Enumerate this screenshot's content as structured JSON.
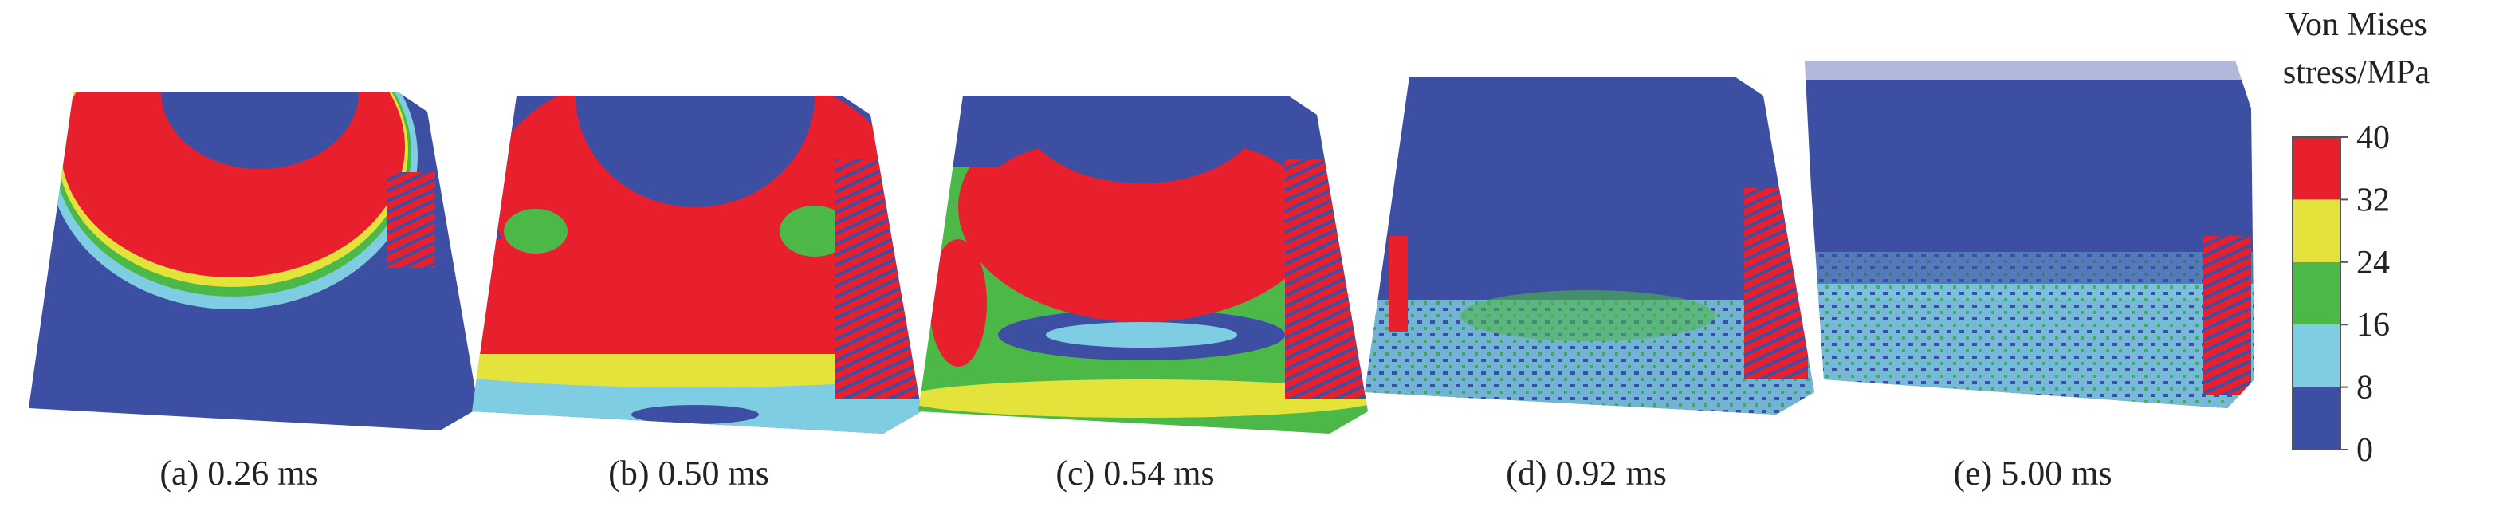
{
  "panels": [
    {
      "caption": "(a) 0.26 ms"
    },
    {
      "caption": "(b) 0.50 ms"
    },
    {
      "caption": "(c) 0.54 ms"
    },
    {
      "caption": "(d) 0.92 ms"
    },
    {
      "caption": "(e) 5.00 ms"
    }
  ],
  "colorbar": {
    "title_lines": [
      "Von Mises",
      "stress/MPa"
    ],
    "lim": [
      0,
      40
    ],
    "ticks": [
      0,
      8,
      16,
      24,
      32,
      40
    ],
    "colors": [
      "#3d4fa3",
      "#7fcde3",
      "#4cb848",
      "#e3e33c",
      "#e8202e"
    ]
  }
}
